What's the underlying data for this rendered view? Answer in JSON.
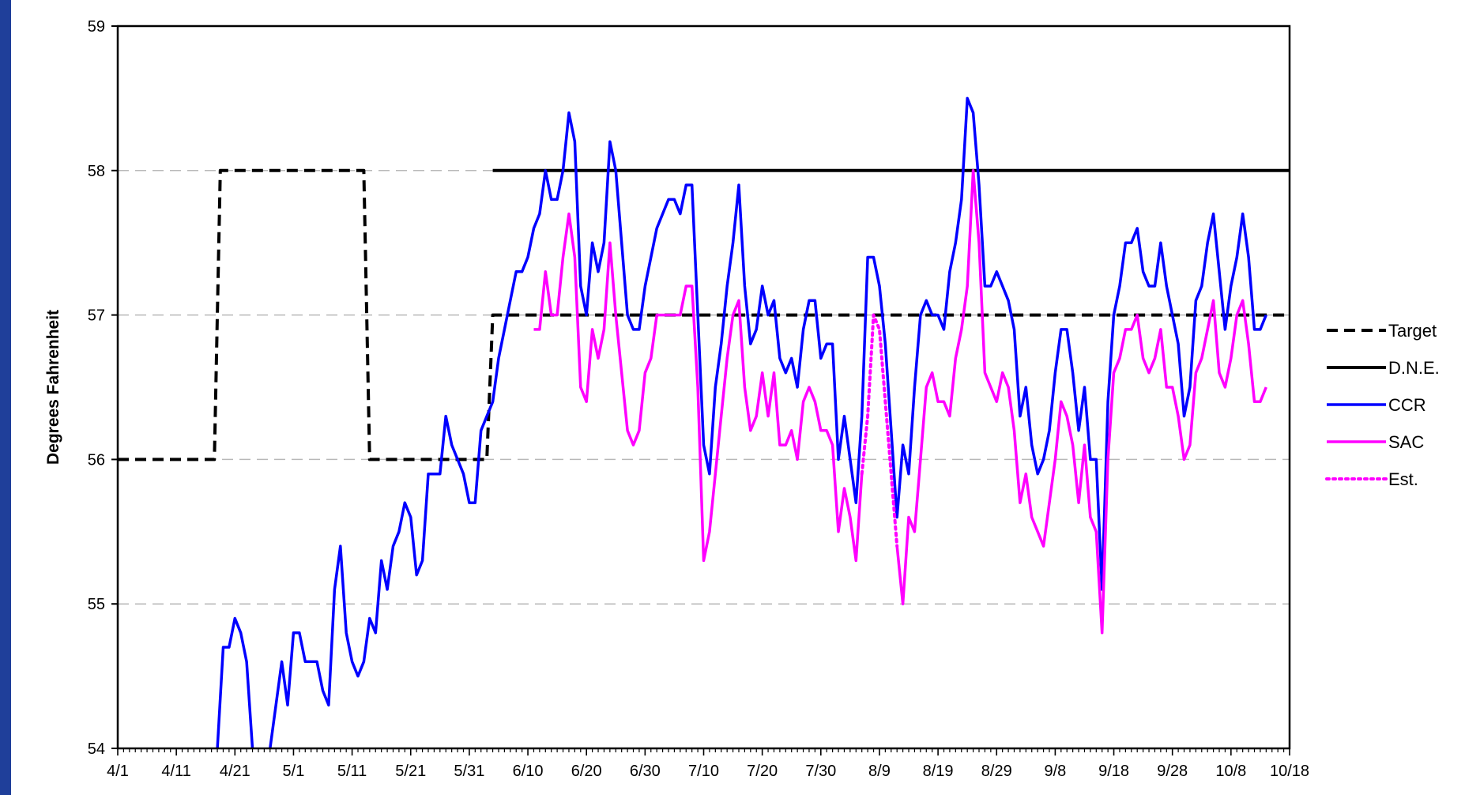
{
  "chart_data": {
    "type": "line",
    "title": "",
    "xlabel": "",
    "ylabel": "Degrees Fahrenheit",
    "ylim": [
      54,
      59
    ],
    "yticks": [
      "54",
      "55",
      "56",
      "57",
      "58",
      "59"
    ],
    "xlim_days": [
      0,
      200
    ],
    "xticks": [
      "4/1",
      "4/11",
      "4/21",
      "5/1",
      "5/11",
      "5/21",
      "5/31",
      "6/10",
      "6/20",
      "6/30",
      "7/10",
      "7/20",
      "7/30",
      "8/9",
      "8/19",
      "8/29",
      "9/8",
      "9/18",
      "9/28",
      "10/8",
      "10/18"
    ],
    "grid": "horizontal dashed",
    "legend_placement": "right",
    "series": [
      {
        "name": "Target",
        "color": "#000000",
        "style": "dashed",
        "points": [
          [
            0,
            56
          ],
          [
            16.5,
            56
          ],
          [
            17.5,
            58
          ],
          [
            42,
            58
          ],
          [
            43,
            56
          ],
          [
            63,
            56
          ],
          [
            64,
            57
          ],
          [
            200,
            57
          ]
        ]
      },
      {
        "name": "D.N.E.",
        "color": "#000000",
        "style": "solid",
        "points": [
          [
            64,
            58
          ],
          [
            200,
            58
          ]
        ]
      },
      {
        "name": "CCR",
        "color": "#0000ff",
        "style": "solid",
        "points": [
          [
            17,
            54.0
          ],
          [
            18,
            54.7
          ],
          [
            19,
            54.7
          ],
          [
            20,
            54.9
          ],
          [
            21,
            54.8
          ],
          [
            22,
            54.6
          ],
          [
            23,
            54.0
          ],
          null,
          [
            26,
            54.0
          ],
          [
            27,
            54.3
          ],
          [
            28,
            54.6
          ],
          [
            29,
            54.3
          ],
          [
            30,
            54.8
          ],
          [
            31,
            54.8
          ],
          [
            32,
            54.6
          ],
          [
            33,
            54.6
          ],
          [
            34,
            54.6
          ],
          [
            35,
            54.4
          ],
          [
            36,
            54.3
          ],
          [
            37,
            55.1
          ],
          [
            38,
            55.4
          ],
          [
            39,
            54.8
          ],
          [
            40,
            54.6
          ],
          [
            41,
            54.5
          ],
          [
            42,
            54.6
          ],
          [
            43,
            54.9
          ],
          [
            44,
            54.8
          ],
          [
            45,
            55.3
          ],
          [
            46,
            55.1
          ],
          [
            47,
            55.4
          ],
          [
            48,
            55.5
          ],
          [
            49,
            55.7
          ],
          [
            50,
            55.6
          ],
          [
            51,
            55.2
          ],
          [
            52,
            55.3
          ],
          [
            53,
            55.9
          ],
          [
            54,
            55.9
          ],
          [
            55,
            55.9
          ],
          [
            56,
            56.3
          ],
          [
            57,
            56.1
          ],
          [
            58,
            56.0
          ],
          [
            59,
            55.9
          ],
          [
            60,
            55.7
          ],
          [
            61,
            55.7
          ],
          [
            62,
            56.2
          ],
          [
            63,
            56.3
          ],
          [
            64,
            56.4
          ],
          [
            65,
            56.7
          ],
          [
            66,
            56.9
          ],
          [
            67,
            57.1
          ],
          [
            68,
            57.3
          ],
          [
            69,
            57.3
          ],
          [
            70,
            57.4
          ],
          [
            71,
            57.6
          ],
          [
            72,
            57.7
          ],
          [
            73,
            58.0
          ],
          [
            74,
            57.8
          ],
          [
            75,
            57.8
          ],
          [
            76,
            58.0
          ],
          [
            77,
            58.4
          ],
          [
            78,
            58.2
          ],
          [
            79,
            57.2
          ],
          [
            80,
            57.0
          ],
          [
            81,
            57.5
          ],
          [
            82,
            57.3
          ],
          [
            83,
            57.5
          ],
          [
            84,
            58.2
          ],
          [
            85,
            58.0
          ],
          [
            86,
            57.5
          ],
          [
            87,
            57.0
          ],
          [
            88,
            56.9
          ],
          [
            89,
            56.9
          ],
          [
            90,
            57.2
          ],
          [
            91,
            57.4
          ],
          [
            92,
            57.6
          ],
          [
            93,
            57.7
          ],
          [
            94,
            57.8
          ],
          [
            95,
            57.8
          ],
          [
            96,
            57.7
          ],
          [
            97,
            57.9
          ],
          [
            98,
            57.9
          ],
          [
            99,
            57.0
          ],
          [
            100,
            56.1
          ],
          [
            101,
            55.9
          ],
          [
            102,
            56.5
          ],
          [
            103,
            56.8
          ],
          [
            104,
            57.2
          ],
          [
            105,
            57.5
          ],
          [
            106,
            57.9
          ],
          [
            107,
            57.2
          ],
          [
            108,
            56.8
          ],
          [
            109,
            56.9
          ],
          [
            110,
            57.2
          ],
          [
            111,
            57.0
          ],
          [
            112,
            57.1
          ],
          [
            113,
            56.7
          ],
          [
            114,
            56.6
          ],
          [
            115,
            56.7
          ],
          [
            116,
            56.5
          ],
          [
            117,
            56.9
          ],
          [
            118,
            57.1
          ],
          [
            119,
            57.1
          ],
          [
            120,
            56.7
          ],
          [
            121,
            56.8
          ],
          [
            122,
            56.8
          ],
          [
            123,
            56.0
          ],
          [
            124,
            56.3
          ],
          [
            125,
            56.0
          ],
          [
            126,
            55.7
          ],
          [
            127,
            56.3
          ],
          [
            128,
            57.4
          ],
          [
            129,
            57.4
          ],
          [
            130,
            57.2
          ],
          [
            131,
            56.8
          ],
          [
            132,
            56.2
          ],
          [
            133,
            55.6
          ],
          [
            134,
            56.1
          ],
          [
            135,
            55.9
          ],
          [
            136,
            56.5
          ],
          [
            137,
            57.0
          ],
          [
            138,
            57.1
          ],
          [
            139,
            57.0
          ],
          [
            140,
            57.0
          ],
          [
            141,
            56.9
          ],
          [
            142,
            57.3
          ],
          [
            143,
            57.5
          ],
          [
            144,
            57.8
          ],
          [
            145,
            58.5
          ],
          [
            146,
            58.4
          ],
          [
            147,
            57.9
          ],
          [
            148,
            57.2
          ],
          [
            149,
            57.2
          ],
          [
            150,
            57.3
          ],
          [
            151,
            57.2
          ],
          [
            152,
            57.1
          ],
          [
            153,
            56.9
          ],
          [
            154,
            56.3
          ],
          [
            155,
            56.5
          ],
          [
            156,
            56.1
          ],
          [
            157,
            55.9
          ],
          [
            158,
            56.0
          ],
          [
            159,
            56.2
          ],
          [
            160,
            56.6
          ],
          [
            161,
            56.9
          ],
          [
            162,
            56.9
          ],
          [
            163,
            56.6
          ],
          [
            164,
            56.2
          ],
          [
            165,
            56.5
          ],
          [
            166,
            56.0
          ],
          [
            167,
            56.0
          ],
          [
            168,
            55.1
          ],
          [
            169,
            56.4
          ],
          [
            170,
            57.0
          ],
          [
            171,
            57.2
          ],
          [
            172,
            57.5
          ],
          [
            173,
            57.5
          ],
          [
            174,
            57.6
          ],
          [
            175,
            57.3
          ],
          [
            176,
            57.2
          ],
          [
            177,
            57.2
          ],
          [
            178,
            57.5
          ],
          [
            179,
            57.2
          ],
          [
            180,
            57.0
          ],
          [
            181,
            56.8
          ],
          [
            182,
            56.3
          ],
          [
            183,
            56.5
          ],
          [
            184,
            57.1
          ],
          [
            185,
            57.2
          ],
          [
            186,
            57.5
          ],
          [
            187,
            57.7
          ],
          [
            188,
            57.3
          ],
          [
            189,
            56.9
          ],
          [
            190,
            57.2
          ],
          [
            191,
            57.4
          ],
          [
            192,
            57.7
          ],
          [
            193,
            57.4
          ],
          [
            194,
            56.9
          ],
          [
            195,
            56.9
          ],
          [
            196,
            57.0
          ]
        ]
      },
      {
        "name": "SAC",
        "color": "#ff00ff",
        "style": "solid",
        "points": [
          [
            71,
            56.9
          ],
          [
            72,
            56.9
          ],
          [
            73,
            57.3
          ],
          [
            74,
            57.0
          ],
          [
            75,
            57.0
          ],
          [
            76,
            57.4
          ],
          [
            77,
            57.7
          ],
          [
            78,
            57.4
          ],
          [
            79,
            56.5
          ],
          [
            80,
            56.4
          ],
          [
            81,
            56.9
          ],
          [
            82,
            56.7
          ],
          [
            83,
            56.9
          ],
          [
            84,
            57.5
          ],
          [
            85,
            57.0
          ],
          [
            86,
            56.6
          ],
          [
            87,
            56.2
          ],
          [
            88,
            56.1
          ],
          [
            89,
            56.2
          ],
          [
            90,
            56.6
          ],
          [
            91,
            56.7
          ],
          [
            92,
            57.0
          ],
          [
            93,
            57.0
          ],
          [
            94,
            57.0
          ],
          [
            95,
            57.0
          ],
          [
            96,
            57.0
          ],
          [
            97,
            57.2
          ],
          [
            98,
            57.2
          ],
          [
            99,
            56.5
          ],
          [
            100,
            55.3
          ],
          [
            101,
            55.5
          ],
          [
            102,
            55.9
          ],
          [
            103,
            56.3
          ],
          [
            104,
            56.7
          ],
          [
            105,
            57.0
          ],
          [
            106,
            57.1
          ],
          [
            107,
            56.5
          ],
          [
            108,
            56.2
          ],
          [
            109,
            56.3
          ],
          [
            110,
            56.6
          ],
          [
            111,
            56.3
          ],
          [
            112,
            56.6
          ],
          [
            113,
            56.1
          ],
          [
            114,
            56.1
          ],
          [
            115,
            56.2
          ],
          [
            116,
            56.0
          ],
          [
            117,
            56.4
          ],
          [
            118,
            56.5
          ],
          [
            119,
            56.4
          ],
          [
            120,
            56.2
          ],
          [
            121,
            56.2
          ],
          [
            122,
            56.1
          ],
          [
            123,
            55.5
          ],
          [
            124,
            55.8
          ],
          [
            125,
            55.6
          ],
          [
            126,
            55.3
          ],
          [
            127,
            55.9
          ],
          null,
          [
            133,
            55.4
          ],
          [
            134,
            55.0
          ],
          [
            135,
            55.6
          ],
          [
            136,
            55.5
          ],
          [
            137,
            56.0
          ],
          [
            138,
            56.5
          ],
          [
            139,
            56.6
          ],
          [
            140,
            56.4
          ],
          [
            141,
            56.4
          ],
          [
            142,
            56.3
          ],
          [
            143,
            56.7
          ],
          [
            144,
            56.9
          ],
          [
            145,
            57.2
          ],
          [
            146,
            58.0
          ],
          [
            147,
            57.5
          ],
          [
            148,
            56.6
          ],
          [
            149,
            56.5
          ],
          [
            150,
            56.4
          ],
          [
            151,
            56.6
          ],
          [
            152,
            56.5
          ],
          [
            153,
            56.2
          ],
          [
            154,
            55.7
          ],
          [
            155,
            55.9
          ],
          [
            156,
            55.6
          ],
          [
            157,
            55.5
          ],
          [
            158,
            55.4
          ],
          [
            159,
            55.7
          ],
          [
            160,
            56.0
          ],
          [
            161,
            56.4
          ],
          [
            162,
            56.3
          ],
          [
            163,
            56.1
          ],
          [
            164,
            55.7
          ],
          [
            165,
            56.1
          ],
          [
            166,
            55.6
          ],
          [
            167,
            55.5
          ],
          [
            168,
            54.8
          ],
          [
            169,
            56.0
          ],
          [
            170,
            56.6
          ],
          [
            171,
            56.7
          ],
          [
            172,
            56.9
          ],
          [
            173,
            56.9
          ],
          [
            174,
            57.0
          ],
          [
            175,
            56.7
          ],
          [
            176,
            56.6
          ],
          [
            177,
            56.7
          ],
          [
            178,
            56.9
          ],
          [
            179,
            56.5
          ],
          [
            180,
            56.5
          ],
          [
            181,
            56.3
          ],
          [
            182,
            56.0
          ],
          [
            183,
            56.1
          ],
          [
            184,
            56.6
          ],
          [
            185,
            56.7
          ],
          [
            186,
            56.9
          ],
          [
            187,
            57.1
          ],
          [
            188,
            56.6
          ],
          [
            189,
            56.5
          ],
          [
            190,
            56.7
          ],
          [
            191,
            57.0
          ],
          [
            192,
            57.1
          ],
          [
            193,
            56.8
          ],
          [
            194,
            56.4
          ],
          [
            195,
            56.4
          ],
          [
            196,
            56.5
          ]
        ]
      },
      {
        "name": "Est.",
        "color": "#ff00ff",
        "style": "dotted",
        "points": [
          [
            127,
            55.9
          ],
          [
            128,
            56.3
          ],
          [
            129,
            57.0
          ],
          [
            130,
            56.9
          ],
          [
            131,
            56.4
          ],
          [
            132,
            55.9
          ],
          [
            133,
            55.4
          ]
        ]
      }
    ]
  }
}
